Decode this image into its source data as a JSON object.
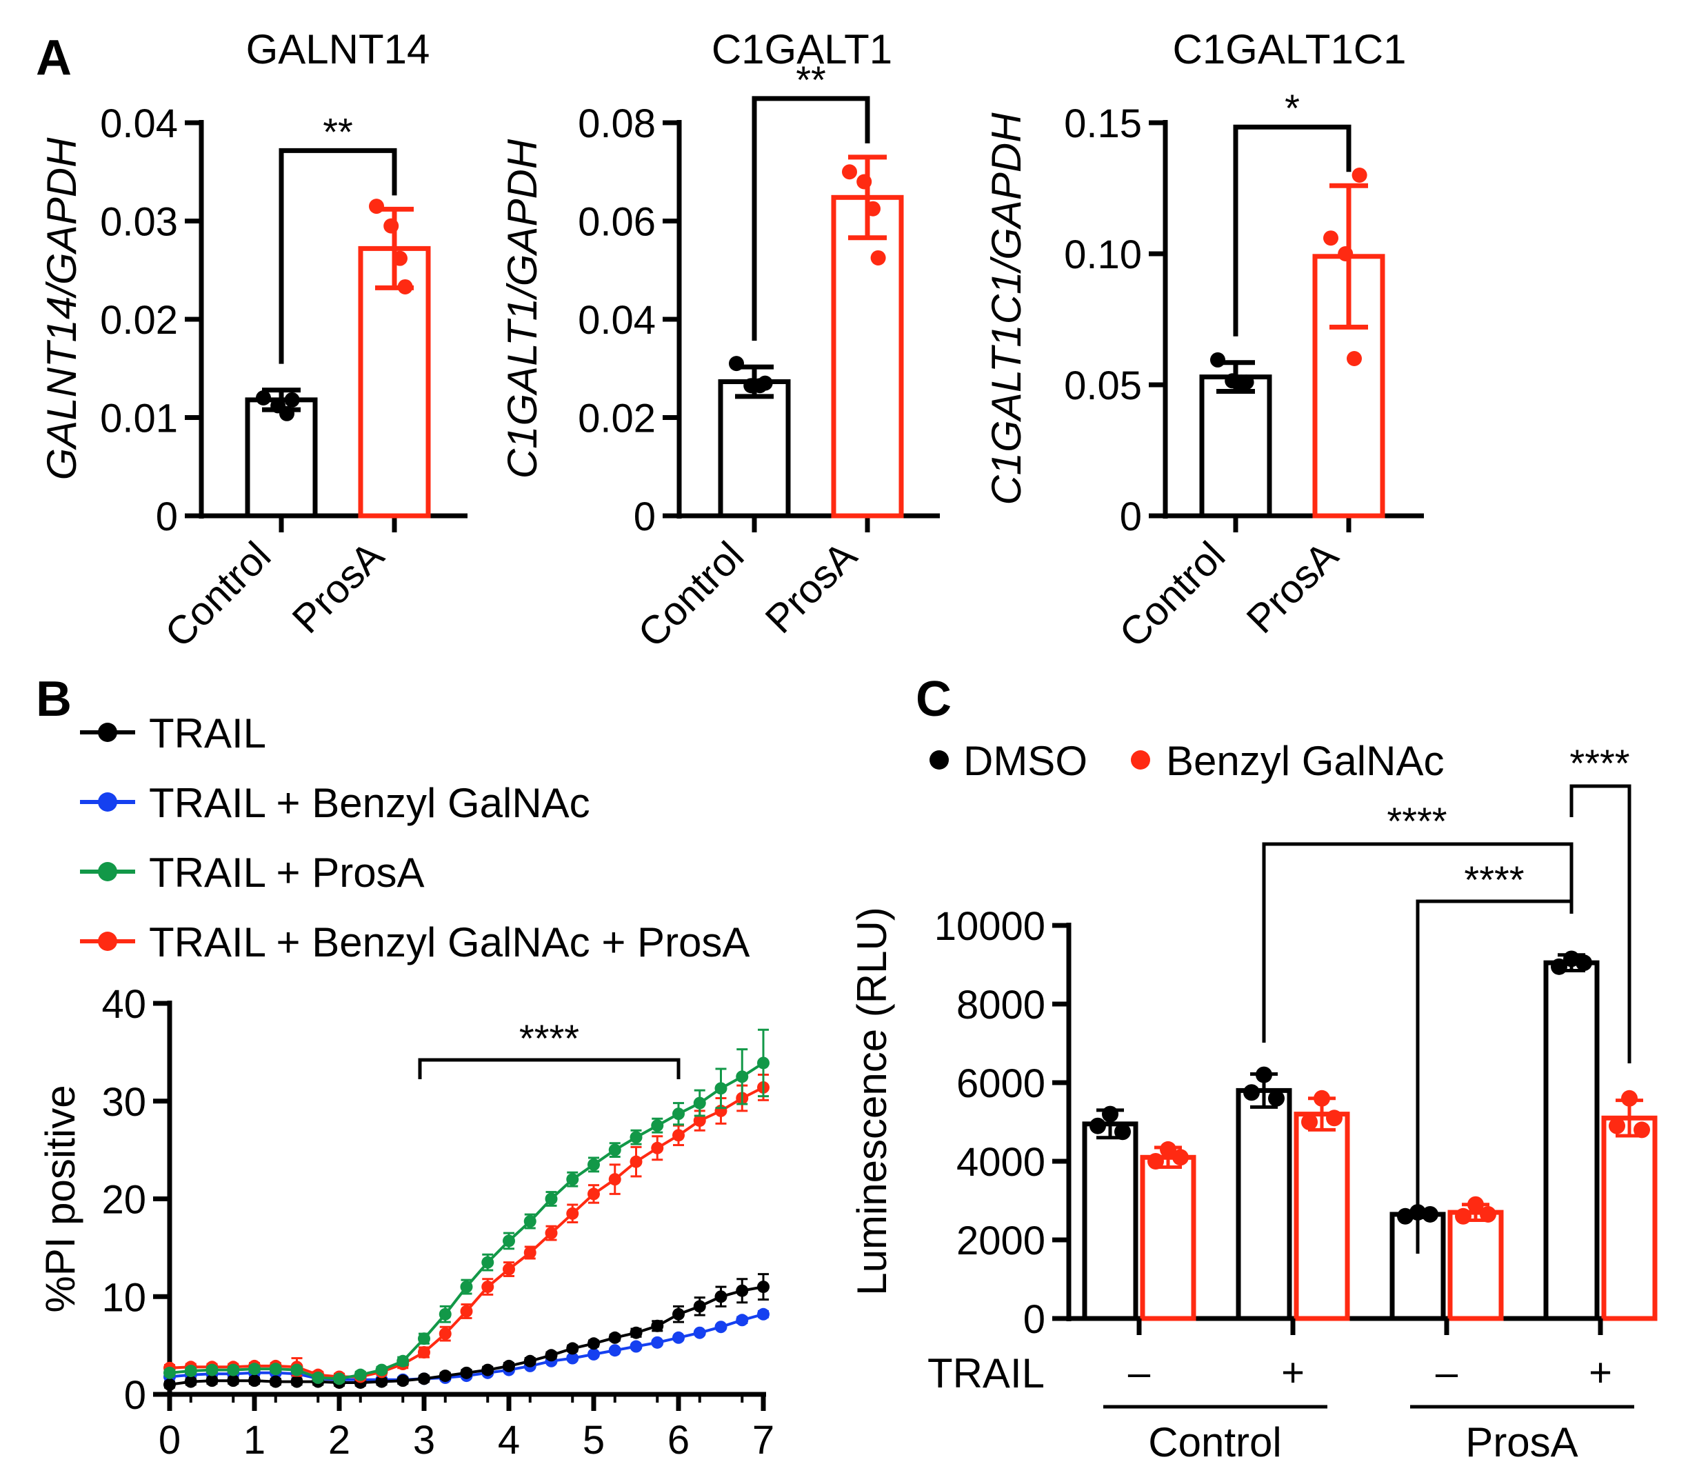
{
  "panel_labels": {
    "a": "A",
    "b": "B",
    "c": "C"
  },
  "colors": {
    "black": "#000000",
    "red": "#FF2A12",
    "blue": "#1540F0",
    "green": "#129848"
  },
  "chart_data": [
    {
      "id": "a1",
      "type": "bar",
      "title": "GALNT14",
      "ylabel": "GALNT14/GAPDH",
      "categories": [
        "Control",
        "ProsA"
      ],
      "values": [
        0.0118,
        0.0272
      ],
      "sd": [
        0.001,
        0.004
      ],
      "points": [
        [
          0.012,
          0.0112,
          0.0104,
          0.0118
        ],
        [
          0.0315,
          0.0295,
          0.0262,
          0.0233
        ]
      ],
      "ylim": [
        0,
        0.04
      ],
      "ticks": [
        0,
        0.01,
        0.02,
        0.03,
        0.04
      ],
      "tick_labels": [
        "0",
        "0.01",
        "0.02",
        "0.03",
        "0.04"
      ],
      "sig": "**"
    },
    {
      "id": "a2",
      "type": "bar",
      "title": "C1GALT1",
      "ylabel": "C1GALT1/GAPDH",
      "categories": [
        "Control",
        "ProsA"
      ],
      "values": [
        0.0273,
        0.0648
      ],
      "sd": [
        0.003,
        0.0082
      ],
      "points": [
        [
          0.031,
          0.0265,
          0.0265,
          0.027
        ],
        [
          0.07,
          0.068,
          0.0625,
          0.0525
        ]
      ],
      "ylim": [
        0,
        0.08
      ],
      "ticks": [
        0,
        0.02,
        0.04,
        0.06,
        0.08
      ],
      "tick_labels": [
        "0",
        "0.02",
        "0.04",
        "0.06",
        "0.08"
      ],
      "sig": "**"
    },
    {
      "id": "a3",
      "type": "bar",
      "title": "C1GALT1C1",
      "ylabel": "C1GALT1C1/GAPDH",
      "categories": [
        "Control",
        "ProsA"
      ],
      "values": [
        0.053,
        0.099
      ],
      "sd": [
        0.0055,
        0.027
      ],
      "points": [
        [
          0.0595,
          0.0515,
          0.051,
          0.051
        ],
        [
          0.106,
          0.1,
          0.06,
          0.13
        ]
      ],
      "ylim": [
        0,
        0.15
      ],
      "ticks": [
        0,
        0.05,
        0.1,
        0.15
      ],
      "tick_labels": [
        "0",
        "0.05",
        "0.10",
        "0.15"
      ],
      "sig": "*"
    },
    {
      "id": "b",
      "type": "line",
      "ylabel": "%PI positive",
      "xlim": [
        0,
        7
      ],
      "ylim": [
        0,
        40
      ],
      "xticks": [
        0,
        1,
        2,
        3,
        4,
        5,
        6,
        7
      ],
      "yticks": [
        0,
        10,
        20,
        30,
        40
      ],
      "x": [
        0,
        0.25,
        0.5,
        0.75,
        1,
        1.25,
        1.5,
        1.75,
        2,
        2.25,
        2.5,
        2.75,
        3,
        3.25,
        3.5,
        3.75,
        4,
        4.25,
        4.5,
        4.75,
        5,
        5.25,
        5.5,
        5.75,
        6,
        6.25,
        6.5,
        6.75,
        7
      ],
      "series": [
        {
          "name": "TRAIL",
          "color": "#000000",
          "values": [
            1.0,
            1.3,
            1.4,
            1.4,
            1.4,
            1.3,
            1.3,
            1.3,
            1.2,
            1.2,
            1.3,
            1.4,
            1.6,
            1.9,
            2.2,
            2.5,
            2.9,
            3.4,
            4.0,
            4.7,
            5.2,
            5.8,
            6.3,
            7.0,
            8.2,
            9.0,
            10.0,
            10.6,
            11.0
          ],
          "err": [
            0.3,
            0.3,
            0.3,
            0.3,
            0.3,
            0.3,
            0.3,
            0.3,
            0.3,
            0.3,
            0.3,
            0.3,
            0.3,
            0.3,
            0.3,
            0.3,
            0.3,
            0.3,
            0.3,
            0.3,
            0.3,
            0.3,
            0.4,
            0.5,
            0.8,
            0.9,
            1.0,
            1.2,
            1.3
          ]
        },
        {
          "name": "TRAIL + Benzyl GalNAc",
          "color": "#1540F0",
          "values": [
            1.8,
            2.0,
            2.1,
            2.1,
            2.2,
            2.2,
            2.1,
            1.6,
            1.5,
            1.5,
            1.5,
            1.5,
            1.6,
            1.7,
            1.9,
            2.2,
            2.5,
            2.9,
            3.4,
            3.7,
            4.1,
            4.5,
            4.9,
            5.3,
            5.8,
            6.3,
            6.9,
            7.6,
            8.2
          ],
          "err": [
            0.2,
            0.2,
            0.2,
            0.2,
            0.2,
            0.2,
            0.2,
            0.2,
            0.2,
            0.2,
            0.2,
            0.2,
            0.2,
            0.2,
            0.2,
            0.2,
            0.2,
            0.2,
            0.2,
            0.2,
            0.2,
            0.2,
            0.2,
            0.2,
            0.2,
            0.2,
            0.2,
            0.3,
            0.3
          ]
        },
        {
          "name": "TRAIL + ProsA",
          "color": "#129848",
          "values": [
            2.2,
            2.4,
            2.5,
            2.5,
            2.6,
            2.6,
            2.5,
            1.7,
            1.6,
            2.0,
            2.5,
            3.4,
            5.7,
            8.2,
            11.0,
            13.5,
            15.7,
            17.7,
            20.0,
            22.0,
            23.5,
            25.0,
            26.3,
            27.5,
            28.7,
            29.8,
            31.3,
            32.5,
            33.9
          ],
          "err": [
            0.3,
            0.3,
            0.3,
            0.3,
            0.3,
            0.3,
            0.3,
            0.3,
            0.3,
            0.3,
            0.3,
            0.4,
            0.5,
            0.8,
            0.7,
            0.8,
            0.8,
            0.7,
            0.7,
            0.7,
            0.7,
            0.7,
            0.7,
            0.7,
            1.1,
            1.3,
            2.0,
            2.8,
            3.4
          ]
        },
        {
          "name": "TRAIL + Benzyl GalNAc + ProsA",
          "color": "#FF2A12",
          "values": [
            2.7,
            2.8,
            2.8,
            2.8,
            2.9,
            2.9,
            2.8,
            2.0,
            1.8,
            1.8,
            2.3,
            3.1,
            4.3,
            6.2,
            8.5,
            11.0,
            12.8,
            14.5,
            16.5,
            18.5,
            20.5,
            22.0,
            23.8,
            25.2,
            26.5,
            28.0,
            29.0,
            30.3,
            31.4
          ],
          "err": [
            0.3,
            0.3,
            0.3,
            0.3,
            0.3,
            0.3,
            0.9,
            0.3,
            0.3,
            0.3,
            0.3,
            0.4,
            0.5,
            0.7,
            0.7,
            0.8,
            0.7,
            0.6,
            0.7,
            0.9,
            0.9,
            1.5,
            1.5,
            1.2,
            1.0,
            1.0,
            1.3,
            1.3,
            1.3
          ]
        }
      ],
      "sig": "****",
      "sig_range": [
        3,
        6
      ]
    },
    {
      "id": "c",
      "type": "bar",
      "ylabel": "Luminescence (RLU)",
      "ylim": [
        0,
        10000
      ],
      "yticks": [
        0,
        2000,
        4000,
        6000,
        8000,
        10000
      ],
      "legend": [
        {
          "name": "DMSO",
          "color": "#000000"
        },
        {
          "name": "Benzyl GalNAc",
          "color": "#FF2A12"
        }
      ],
      "trail_label": "TRAIL",
      "trail_signs": [
        "–",
        "+",
        "–",
        "+"
      ],
      "groups": [
        "Control",
        "ProsA"
      ],
      "series": [
        {
          "name": "DMSO",
          "color": "#000000",
          "values": [
            4950,
            5800,
            2650,
            9050
          ],
          "sd": [
            350,
            420,
            80,
            200
          ],
          "points": [
            [
              5200,
              4900,
              4750
            ],
            [
              6200,
              5750,
              5600
            ],
            [
              2700,
              2600,
              2650
            ],
            [
              9150,
              8950,
              9050
            ]
          ]
        },
        {
          "name": "Benzyl GalNAc",
          "color": "#FF2A12",
          "values": [
            4100,
            5200,
            2700,
            5100
          ],
          "sd": [
            250,
            400,
            200,
            450
          ],
          "points": [
            [
              4300,
              4000,
              4100
            ],
            [
              5600,
              5000,
              5100
            ],
            [
              2900,
              2600,
              2650
            ],
            [
              5600,
              4900,
              4800
            ]
          ]
        }
      ],
      "sig": [
        "****",
        "****",
        "****"
      ]
    }
  ]
}
